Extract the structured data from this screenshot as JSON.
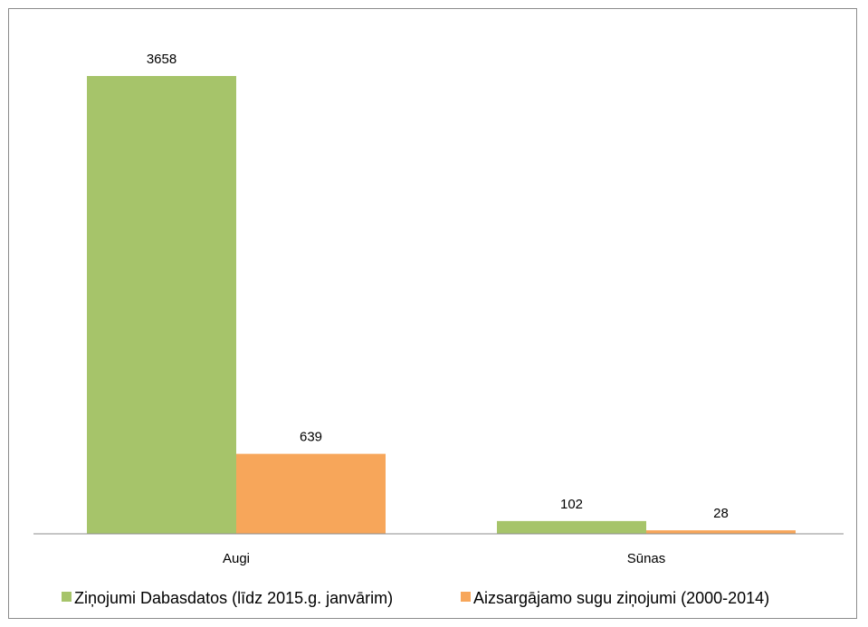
{
  "chart_data": {
    "type": "bar",
    "title": "",
    "xlabel": "",
    "ylabel": "",
    "categories": [
      "Augi",
      "Sūnas"
    ],
    "series": [
      {
        "name": "Ziņojumi Dabasdatos (līdz 2015.g. janvārim)",
        "values": [
          3658,
          102
        ],
        "color": "#a6c46a"
      },
      {
        "name": "Aizsargājamo sugu ziņojumi (2000-2014)",
        "values": [
          639,
          28
        ],
        "color": "#f7a65a"
      }
    ],
    "ylim": [
      0,
      3658
    ],
    "grid": false,
    "data_labels": true,
    "legend_position": "bottom"
  }
}
